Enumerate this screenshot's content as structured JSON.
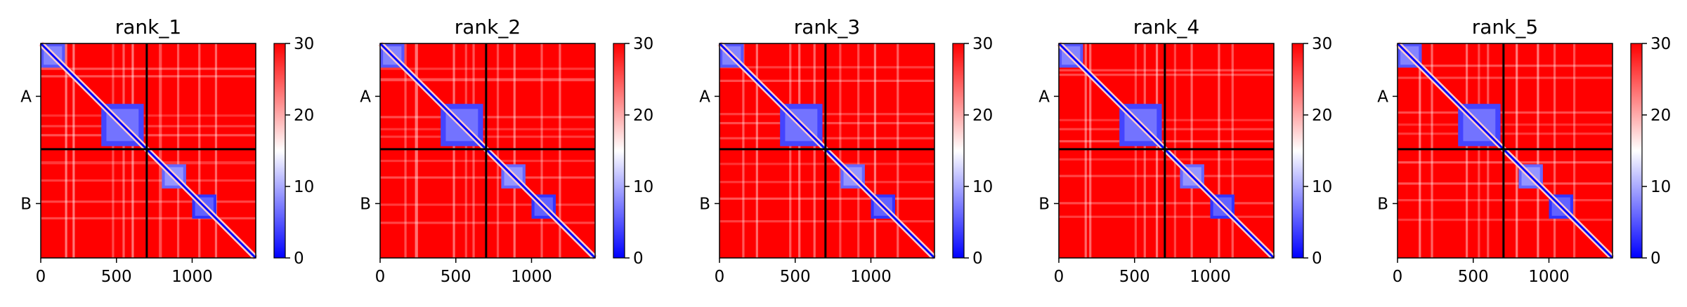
{
  "chart_data": {
    "type": "heatmap",
    "colormap": {
      "low": "#0000ff",
      "mid": "#ffffff",
      "high": "#ff0000"
    },
    "range": [
      0,
      30
    ],
    "colorbar_ticks": [
      "0",
      "10",
      "20",
      "30"
    ],
    "x_ticks": [
      {
        "value": 0,
        "label": "0"
      },
      {
        "value": 500,
        "label": "500"
      },
      {
        "value": 1000,
        "label": "1000"
      }
    ],
    "xlim": [
      0,
      1420
    ],
    "chain_boundary": 700,
    "chain_labels": [
      "A",
      "B"
    ],
    "panels": [
      {
        "title": "rank_1",
        "variant": 0
      },
      {
        "title": "rank_2",
        "variant": 1
      },
      {
        "title": "rank_3",
        "variant": 2
      },
      {
        "title": "rank_4",
        "variant": 3
      },
      {
        "title": "rank_5",
        "variant": 4
      }
    ],
    "low_error_blocks": [
      {
        "range": [
          0,
          160
        ],
        "value": 5
      },
      {
        "range": [
          400,
          680
        ],
        "value": 4
      },
      {
        "range": [
          800,
          960
        ],
        "value": 6
      },
      {
        "range": [
          1000,
          1160
        ],
        "value": 3
      }
    ],
    "grid": false
  }
}
